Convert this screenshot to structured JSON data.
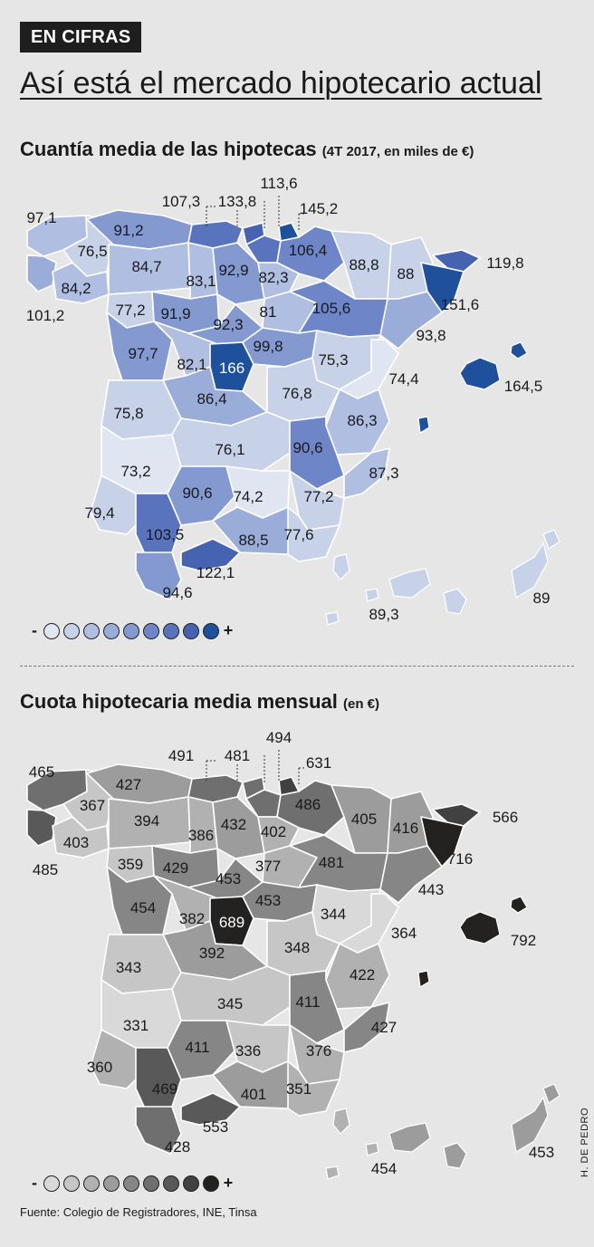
{
  "header": {
    "badge": "EN CIFRAS",
    "headline": "Así está el mercado hipotecario actual"
  },
  "maps": [
    {
      "title": "Cuantía media de las hipotecas",
      "subtitle_note": "(4T 2017, en miles de €)",
      "palette": [
        "#dfe6f2",
        "#c7d2e9",
        "#b0bfe1",
        "#99add8",
        "#8399d0",
        "#6e86c7",
        "#5a73bd",
        "#4663b2",
        "#1e509c"
      ],
      "legend": {
        "minus": "-",
        "plus": "+"
      },
      "values": {
        "a_coruna": "97,1",
        "pontevedra": "101,2",
        "lugo": "76,5",
        "ourense": "84,2",
        "asturias": "91,2",
        "cantabria": "107,3",
        "bizkaia": "133,8",
        "gipuzkoa": "145,2",
        "alava": "113,6",
        "navarra": "106,4",
        "leon": "84,7",
        "palencia": "83,1",
        "burgos": "92,9",
        "la_rioja": "82,3",
        "huesca": "88,8",
        "lleida": "88",
        "girona": "119,8",
        "barcelona": "151,6",
        "tarragona": "93,8",
        "zamora": "77,2",
        "valladolid": "91,9",
        "soria": "81",
        "zaragoza": "105,6",
        "segovia": "92,3",
        "salamanca": "97,7",
        "avila": "82,1",
        "madrid": "166",
        "guadalajara": "99,8",
        "teruel": "75,3",
        "castellon": "74,4",
        "baleares": "164,5",
        "toledo": "86,4",
        "cuenca": "76,8",
        "valencia": "86,3",
        "caceres": "75,8",
        "badajoz": "73,2",
        "ciudad_real": "76,1",
        "albacete": "90,6",
        "alicante": "87,3",
        "huelva": "79,4",
        "sevilla": "103,5",
        "cordoba": "90,6",
        "jaen": "74,2",
        "granada": "88,5",
        "murcia": "77,2",
        "almeria": "77,6",
        "cadiz": "94,6",
        "malaga": "122,1",
        "santa_cruz_tenerife": "89,3",
        "las_palmas": "89"
      }
    },
    {
      "title": "Cuota hipotecaria media mensual",
      "subtitle_note": "(en €)",
      "palette": [
        "#d9d9d9",
        "#c6c6c6",
        "#b1b1b1",
        "#9c9c9c",
        "#868686",
        "#6f6f6f",
        "#595959",
        "#414141",
        "#242220"
      ],
      "legend": {
        "minus": "-",
        "plus": "+"
      },
      "values": {
        "a_coruna": "465",
        "pontevedra": "485",
        "lugo": "367",
        "ourense": "403",
        "asturias": "427",
        "cantabria": "491",
        "bizkaia": "481",
        "gipuzkoa": "631",
        "alava": "494",
        "navarra": "486",
        "leon": "394",
        "palencia": "386",
        "burgos": "432",
        "la_rioja": "402",
        "huesca": "405",
        "lleida": "416",
        "girona": "566",
        "barcelona": "716",
        "tarragona": "443",
        "zamora": "359",
        "valladolid": "429",
        "soria": "377",
        "zaragoza": "481",
        "segovia": "453",
        "salamanca": "454",
        "avila": "382",
        "madrid": "689",
        "guadalajara": "453",
        "teruel": "344",
        "castellon": "364",
        "baleares": "792",
        "toledo": "392",
        "cuenca": "348",
        "valencia": "422",
        "caceres": "343",
        "badajoz": "331",
        "ciudad_real": "345",
        "albacete": "411",
        "alicante": "427",
        "huelva": "360",
        "sevilla": "469",
        "cordoba": "411",
        "jaen": "336",
        "granada": "401",
        "murcia": "376",
        "almeria": "351",
        "cadiz": "428",
        "malaga": "553",
        "santa_cruz_tenerife": "454",
        "las_palmas": "453"
      }
    }
  ],
  "footer": {
    "source": "Fuente: Colegio de Registradores, INE, Tinsa",
    "credit": "H. DE PEDRO"
  }
}
